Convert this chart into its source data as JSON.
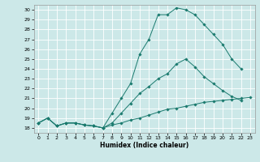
{
  "xlabel": "Humidex (Indice chaleur)",
  "bg_color": "#cce8e8",
  "line_color": "#1a7a6e",
  "grid_color": "#ffffff",
  "xlim": [
    -0.5,
    23.5
  ],
  "ylim": [
    17.5,
    30.5
  ],
  "yticks": [
    18,
    19,
    20,
    21,
    22,
    23,
    24,
    25,
    26,
    27,
    28,
    29,
    30
  ],
  "xticks": [
    0,
    1,
    2,
    3,
    4,
    5,
    6,
    7,
    8,
    9,
    10,
    11,
    12,
    13,
    14,
    15,
    16,
    17,
    18,
    19,
    20,
    21,
    22,
    23
  ],
  "line1_x": [
    0,
    1,
    2,
    3,
    4,
    5,
    6,
    7,
    8,
    9,
    10,
    11,
    12,
    13,
    14,
    15,
    16,
    17,
    18,
    19,
    20,
    21,
    22,
    23
  ],
  "line1_y": [
    18.5,
    19.0,
    18.2,
    18.5,
    18.5,
    18.3,
    18.2,
    18.0,
    18.3,
    18.5,
    18.8,
    19.0,
    19.3,
    19.6,
    19.9,
    20.0,
    20.2,
    20.4,
    20.6,
    20.7,
    20.8,
    20.9,
    21.0,
    21.1
  ],
  "line2_x": [
    0,
    1,
    2,
    3,
    4,
    5,
    6,
    7,
    8,
    9,
    10,
    11,
    12,
    13,
    14,
    15,
    16,
    17,
    18,
    19,
    20,
    21,
    22
  ],
  "line2_y": [
    18.5,
    19.0,
    18.2,
    18.5,
    18.5,
    18.3,
    18.2,
    18.0,
    18.5,
    19.5,
    20.5,
    21.5,
    22.2,
    23.0,
    23.5,
    24.5,
    25.0,
    24.2,
    23.2,
    22.5,
    21.8,
    21.2,
    20.8
  ],
  "line3_x": [
    0,
    1,
    2,
    3,
    4,
    5,
    6,
    7,
    8,
    9,
    10,
    11,
    12,
    13,
    14,
    15,
    16,
    17,
    18,
    19,
    20,
    21,
    22
  ],
  "line3_y": [
    18.5,
    19.0,
    18.2,
    18.5,
    18.5,
    18.3,
    18.2,
    18.0,
    19.5,
    21.0,
    22.5,
    25.5,
    27.0,
    29.5,
    29.5,
    30.2,
    30.0,
    29.5,
    28.5,
    27.5,
    26.5,
    25.0,
    24.0
  ]
}
